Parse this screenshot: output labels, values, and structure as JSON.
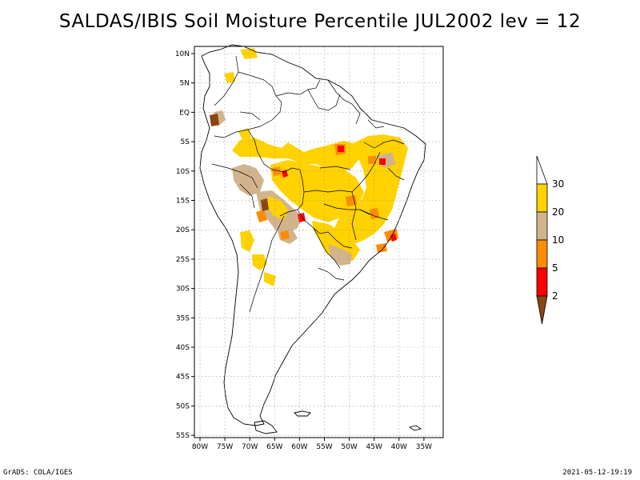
{
  "title": "SALDAS/IBIS Soil Moisture Percentile JUL2002 lev = 12",
  "footer": {
    "left": "GrADS: COLA/IGES",
    "right": "2021-05-12-19:19"
  },
  "map": {
    "lon_labels": [
      "80W",
      "75W",
      "70W",
      "65W",
      "60W",
      "55W",
      "50W",
      "45W",
      "40W",
      "35W"
    ],
    "lat_labels": [
      "10N",
      "5N",
      "EQ",
      "5S",
      "10S",
      "15S",
      "20S",
      "25S",
      "30S",
      "35S",
      "40S",
      "45S",
      "50S",
      "55S"
    ]
  },
  "legend": {
    "labels": [
      "30",
      "20",
      "10",
      "5",
      "2"
    ],
    "colors": [
      "#ffffff",
      "#ffd200",
      "#d2b48c",
      "#ff8c00",
      "#ff0000",
      "#8b4513"
    ]
  },
  "colors": {
    "yellow": "#ffd200",
    "tan": "#d2b48c",
    "orange": "#ff8c00",
    "red": "#ff0000",
    "brown": "#8b4513"
  }
}
